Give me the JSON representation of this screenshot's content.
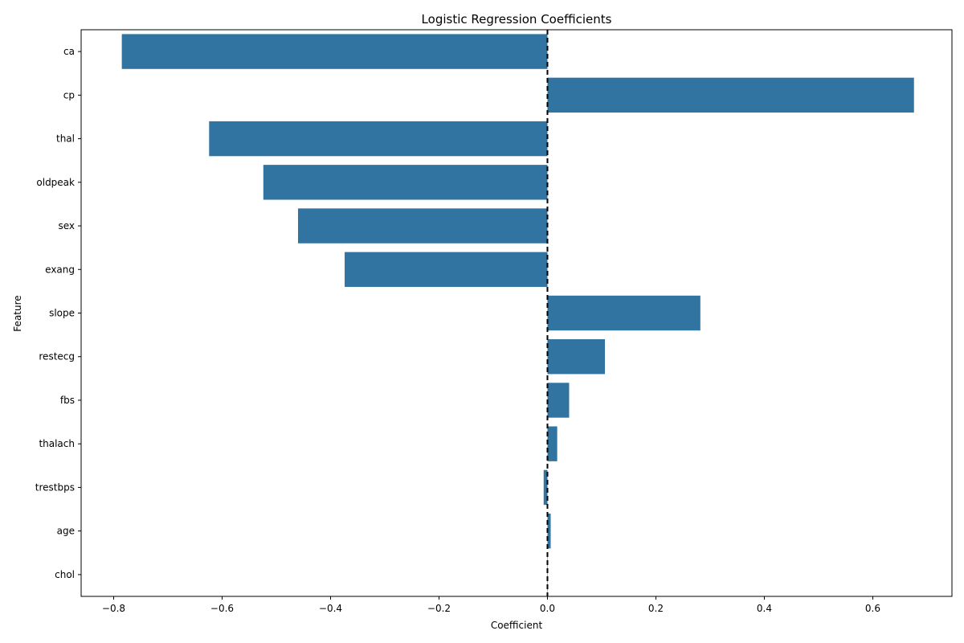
{
  "chart_data": {
    "type": "bar",
    "orientation": "horizontal",
    "title": "Logistic Regression Coefficients",
    "xlabel": "Coefficient",
    "ylabel": "Feature",
    "categories": [
      "ca",
      "cp",
      "thal",
      "oldpeak",
      "sex",
      "exang",
      "slope",
      "restecg",
      "fbs",
      "thalach",
      "trestbps",
      "age",
      "chol"
    ],
    "values": [
      -0.785,
      0.676,
      -0.624,
      -0.524,
      -0.46,
      -0.374,
      0.282,
      0.106,
      0.04,
      0.018,
      -0.007,
      0.006,
      0.0005
    ],
    "xlim": [
      -0.86,
      0.746
    ],
    "xticks": [
      -0.8,
      -0.6,
      -0.4,
      -0.2,
      0.0,
      0.2,
      0.4,
      0.6
    ],
    "xtick_labels": [
      "−0.8",
      "−0.6",
      "−0.4",
      "−0.2",
      "0.0",
      "0.2",
      "0.4",
      "0.6"
    ],
    "reference_line": {
      "x": 0,
      "style": "dashed",
      "color": "#000000"
    },
    "bar_color": "#3274a1",
    "grid": false,
    "legend": "none"
  }
}
